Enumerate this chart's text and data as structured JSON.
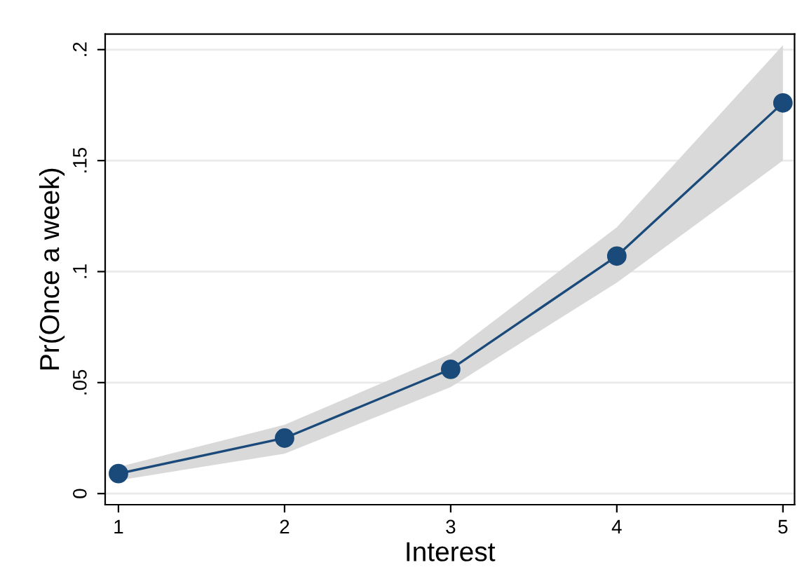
{
  "chart_data": {
    "type": "line",
    "xlabel": "Interest",
    "ylabel": "Pr(Once a week)",
    "x": [
      1,
      2,
      3,
      4,
      5
    ],
    "series": [
      {
        "color": "#1a4a7a",
        "values": [
          0.009,
          0.025,
          0.056,
          0.107,
          0.176
        ],
        "lower": [
          0.006,
          0.018,
          0.048,
          0.095,
          0.15
        ],
        "upper": [
          0.012,
          0.031,
          0.063,
          0.12,
          0.202
        ]
      }
    ],
    "xlim": [
      0.92,
      5.07
    ],
    "ylim": [
      -0.005,
      0.207
    ],
    "xticks": [
      1,
      2,
      3,
      4,
      5
    ],
    "yticks": [
      {
        "value": 0,
        "label": "0"
      },
      {
        "value": 0.05,
        "label": ".05"
      },
      {
        "value": 0.1,
        "label": ".1"
      },
      {
        "value": 0.15,
        "label": ".15"
      },
      {
        "value": 0.2,
        "label": ".2"
      }
    ],
    "grid": "y",
    "marker": "circle",
    "line_style": "solid",
    "legend": false
  }
}
